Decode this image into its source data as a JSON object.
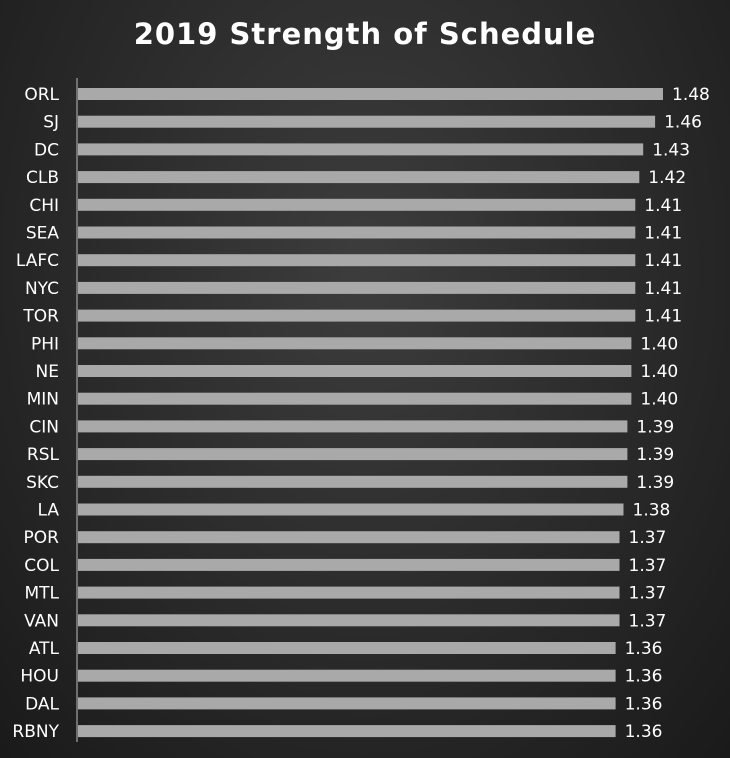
{
  "chart_data": {
    "type": "bar",
    "orientation": "horizontal",
    "title": "2019 Strength of Schedule",
    "categories": [
      "ORL",
      "SJ",
      "DC",
      "CLB",
      "CHI",
      "SEA",
      "LAFC",
      "NYC",
      "TOR",
      "PHI",
      "NE",
      "MIN",
      "CIN",
      "RSL",
      "SKC",
      "LA",
      "POR",
      "COL",
      "MTL",
      "VAN",
      "ATL",
      "HOU",
      "DAL",
      "RBNY"
    ],
    "values": [
      1.48,
      1.46,
      1.43,
      1.42,
      1.41,
      1.41,
      1.41,
      1.41,
      1.41,
      1.4,
      1.4,
      1.4,
      1.39,
      1.39,
      1.39,
      1.38,
      1.37,
      1.37,
      1.37,
      1.37,
      1.36,
      1.36,
      1.36,
      1.36
    ],
    "value_labels": [
      "1.48",
      "1.46",
      "1.43",
      "1.42",
      "1.41",
      "1.41",
      "1.41",
      "1.41",
      "1.41",
      "1.40",
      "1.40",
      "1.40",
      "1.39",
      "1.39",
      "1.39",
      "1.38",
      "1.37",
      "1.37",
      "1.37",
      "1.37",
      "1.36",
      "1.36",
      "1.36",
      "1.36"
    ],
    "xlim": [
      0,
      1.48
    ],
    "xlabel": "",
    "ylabel": "",
    "grid": false,
    "legend": "none",
    "bar_color": "#a9a9a9",
    "background_color": "#2e2e2e",
    "text_color": "#ffffff"
  }
}
